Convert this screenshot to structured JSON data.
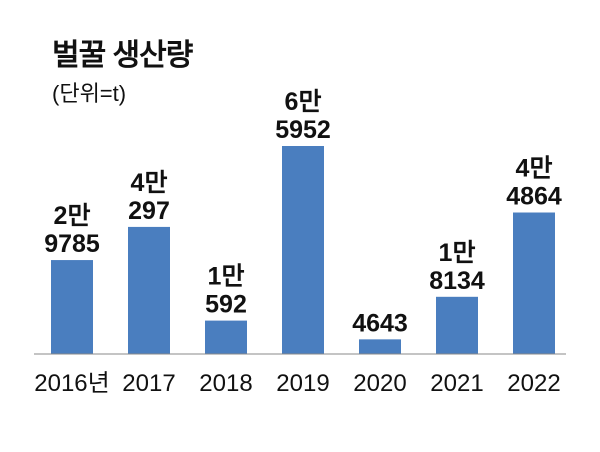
{
  "chart_data": {
    "type": "bar",
    "title": "벌꿀 생산량",
    "subtitle": "(단위=t)",
    "categories": [
      "2016년",
      "2017",
      "2018",
      "2019",
      "2020",
      "2021",
      "2022"
    ],
    "values": [
      29785,
      40297,
      10592,
      65952,
      4643,
      18134,
      44864
    ],
    "value_labels": [
      [
        "2만",
        "9785"
      ],
      [
        "4만",
        "297"
      ],
      [
        "1만",
        "592"
      ],
      [
        "6만",
        "5952"
      ],
      [
        "4643"
      ],
      [
        "1만",
        "8134"
      ],
      [
        "4만",
        "4864"
      ]
    ],
    "ylim": [
      0,
      66000
    ],
    "grid": false,
    "bar_color": "#4a7ebf"
  }
}
